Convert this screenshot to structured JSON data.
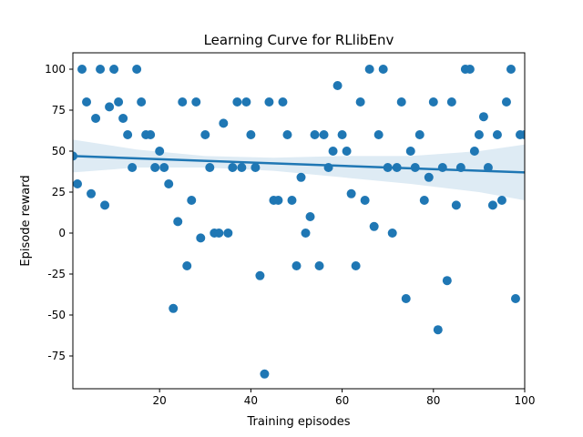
{
  "chart_data": {
    "type": "scatter",
    "title": "Learning Curve for RLlibEnv",
    "xlabel": "Training episodes",
    "ylabel": "Episode reward",
    "xlim": [
      1,
      100
    ],
    "ylim": [
      -95,
      110
    ],
    "xticks": [
      20,
      40,
      60,
      80,
      100
    ],
    "yticks": [
      -75,
      -50,
      -25,
      0,
      25,
      50,
      75,
      100
    ],
    "grid": false,
    "colors": {
      "points": "#1f77b4",
      "fit_line": "#1f77b4",
      "confidence_band": "#1f77b4"
    },
    "points": [
      [
        1,
        47
      ],
      [
        2,
        30
      ],
      [
        3,
        100
      ],
      [
        4,
        80
      ],
      [
        5,
        24
      ],
      [
        6,
        70
      ],
      [
        7,
        100
      ],
      [
        8,
        17
      ],
      [
        9,
        77
      ],
      [
        10,
        100
      ],
      [
        11,
        80
      ],
      [
        12,
        70
      ],
      [
        13,
        60
      ],
      [
        14,
        40
      ],
      [
        15,
        100
      ],
      [
        16,
        80
      ],
      [
        17,
        60
      ],
      [
        18,
        60
      ],
      [
        19,
        40
      ],
      [
        20,
        50
      ],
      [
        21,
        40
      ],
      [
        22,
        30
      ],
      [
        23,
        -46
      ],
      [
        24,
        7
      ],
      [
        25,
        80
      ],
      [
        26,
        -20
      ],
      [
        27,
        20
      ],
      [
        28,
        80
      ],
      [
        29,
        -3
      ],
      [
        30,
        60
      ],
      [
        31,
        40
      ],
      [
        32,
        0
      ],
      [
        33,
        0
      ],
      [
        34,
        67
      ],
      [
        35,
        0
      ],
      [
        36,
        40
      ],
      [
        37,
        80
      ],
      [
        38,
        40
      ],
      [
        39,
        80
      ],
      [
        40,
        60
      ],
      [
        41,
        40
      ],
      [
        42,
        -26
      ],
      [
        43,
        -86
      ],
      [
        44,
        80
      ],
      [
        45,
        20
      ],
      [
        46,
        20
      ],
      [
        47,
        80
      ],
      [
        48,
        60
      ],
      [
        49,
        20
      ],
      [
        50,
        -20
      ],
      [
        51,
        34
      ],
      [
        52,
        0
      ],
      [
        53,
        10
      ],
      [
        54,
        60
      ],
      [
        55,
        -20
      ],
      [
        56,
        60
      ],
      [
        57,
        40
      ],
      [
        58,
        50
      ],
      [
        59,
        90
      ],
      [
        60,
        60
      ],
      [
        61,
        50
      ],
      [
        62,
        24
      ],
      [
        63,
        -20
      ],
      [
        64,
        80
      ],
      [
        65,
        20
      ],
      [
        66,
        100
      ],
      [
        67,
        4
      ],
      [
        68,
        60
      ],
      [
        69,
        100
      ],
      [
        70,
        40
      ],
      [
        71,
        0
      ],
      [
        72,
        40
      ],
      [
        73,
        80
      ],
      [
        74,
        -40
      ],
      [
        75,
        50
      ],
      [
        76,
        40
      ],
      [
        77,
        60
      ],
      [
        78,
        20
      ],
      [
        79,
        34
      ],
      [
        80,
        80
      ],
      [
        81,
        -59
      ],
      [
        82,
        40
      ],
      [
        83,
        -29
      ],
      [
        84,
        80
      ],
      [
        85,
        17
      ],
      [
        86,
        40
      ],
      [
        87,
        100
      ],
      [
        88,
        100
      ],
      [
        89,
        50
      ],
      [
        90,
        60
      ],
      [
        91,
        71
      ],
      [
        92,
        40
      ],
      [
        93,
        17
      ],
      [
        94,
        60
      ],
      [
        95,
        20
      ],
      [
        96,
        80
      ],
      [
        97,
        100
      ],
      [
        98,
        -40
      ],
      [
        99,
        60
      ],
      [
        100,
        60
      ]
    ],
    "regression": {
      "x": [
        1,
        100
      ],
      "y": [
        47,
        37
      ]
    },
    "confidence_band": {
      "x": [
        1,
        15,
        30,
        45,
        60,
        75,
        90,
        100
      ],
      "upper": [
        57,
        51,
        47,
        46,
        47,
        47,
        50,
        54
      ],
      "lower": [
        37,
        40,
        40,
        38,
        34,
        30,
        25,
        20
      ]
    }
  }
}
